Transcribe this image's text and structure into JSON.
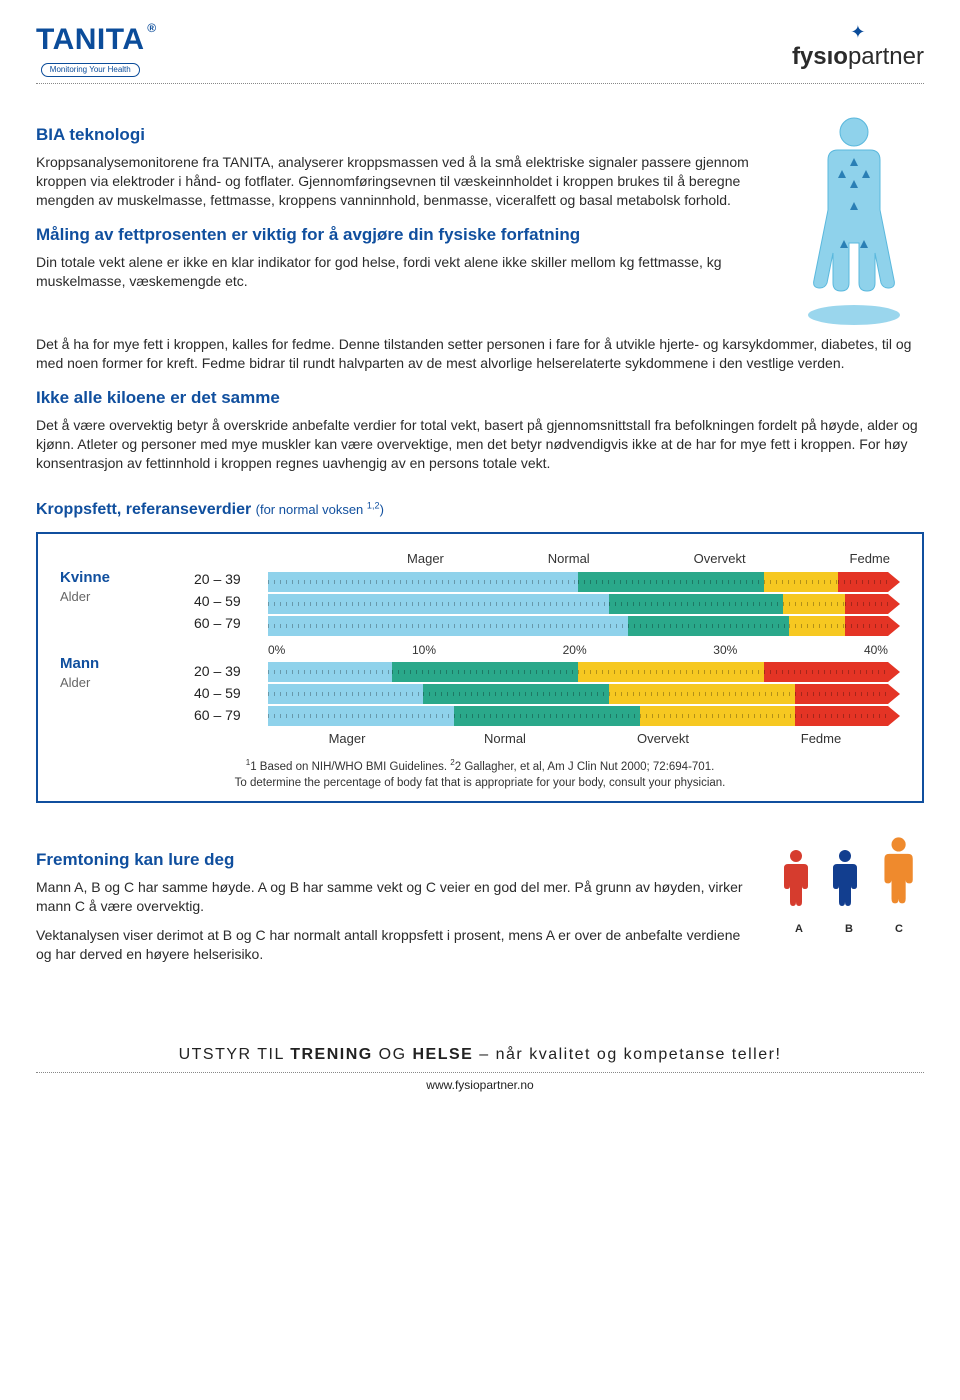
{
  "header": {
    "tanita_brand": "TANITA",
    "tanita_sub": "Monitoring Your Health",
    "fysio_name_1": "fysıo",
    "fysio_name_2": "partner"
  },
  "colors": {
    "brand_blue": "#104f9e",
    "seg_lightblue": "#8fd2eb",
    "seg_teal": "#2aa88a",
    "seg_yellow": "#f6c821",
    "seg_red": "#e43425",
    "man_red": "#d63c2e",
    "man_blue": "#123e8f",
    "man_orange": "#ef8a2d"
  },
  "sections": {
    "s1_title": "BIA teknologi",
    "s1_p1": "Kroppsanalysemonitorene fra TANITA, analyserer kroppsmassen ved å la små elektriske signaler passere gjennom kroppen via elektroder i hånd- og fotflater. Gjennomføringsevnen til væskeinnholdet i kroppen brukes til å beregne mengden av muskelmasse, fettmasse, kroppens vanninnhold, benmasse, viceralfett og basal metabolsk forhold.",
    "s2_title": "Måling av fettprosenten er viktig for å avgjøre din fysiske forfatning",
    "s2_p1": "Din totale vekt alene er ikke en klar indikator for god helse, fordi vekt alene ikke skiller mellom kg fettmasse, kg muskelmasse, væskemengde etc.",
    "s2_p2": "Det å ha for mye fett i kroppen, kalles for fedme. Denne tilstanden setter personen i fare for å utvikle hjerte- og karsykdommer, diabetes, til og med noen former for kreft. Fedme bidrar til rundt halvparten av de mest alvorlige helserelaterte sykdommene i den vestlige verden.",
    "s3_title": "Ikke alle kiloene er det samme",
    "s3_p1": "Det å være overvektig betyr å overskride anbefalte verdier for total vekt, basert på gjennomsnittstall fra befolkningen fordelt på høyde, alder og kjønn. Atleter og personer med mye muskler kan være overvektige, men det betyr nødvendigvis ikke at de har for mye fett i kroppen. For høy konsentrasjon av fettinnhold i kroppen regnes uavhengig av en persons totale vekt."
  },
  "chart": {
    "title": "Kroppsfett, referanseverdier",
    "title_sub": "(for normal voksen 1,2)",
    "categories_top": [
      "Mager",
      "Normal",
      "Overvekt",
      "Fedme"
    ],
    "categories_bottom": [
      "Mager",
      "Normal",
      "Overvekt",
      "Fedme"
    ],
    "axis_labels": [
      "0%",
      "10%",
      "20%",
      "30%",
      "40%"
    ],
    "groups": [
      {
        "gender": "Kvinne",
        "alder_label": "Alder",
        "rows": [
          {
            "age": "20 – 39",
            "segments": [
              {
                "pct": 50,
                "color": "#8fd2eb"
              },
              {
                "pct": 30,
                "color": "#2aa88a"
              },
              {
                "pct": 12,
                "color": "#f6c821"
              },
              {
                "pct": 8,
                "color": "#e43425"
              }
            ]
          },
          {
            "age": "40 – 59",
            "segments": [
              {
                "pct": 55,
                "color": "#8fd2eb"
              },
              {
                "pct": 28,
                "color": "#2aa88a"
              },
              {
                "pct": 10,
                "color": "#f6c821"
              },
              {
                "pct": 7,
                "color": "#e43425"
              }
            ]
          },
          {
            "age": "60 – 79",
            "segments": [
              {
                "pct": 58,
                "color": "#8fd2eb"
              },
              {
                "pct": 26,
                "color": "#2aa88a"
              },
              {
                "pct": 9,
                "color": "#f6c821"
              },
              {
                "pct": 7,
                "color": "#e43425"
              }
            ]
          }
        ]
      },
      {
        "gender": "Mann",
        "alder_label": "Alder",
        "rows": [
          {
            "age": "20 – 39",
            "segments": [
              {
                "pct": 20,
                "color": "#8fd2eb"
              },
              {
                "pct": 30,
                "color": "#2aa88a"
              },
              {
                "pct": 30,
                "color": "#f6c821"
              },
              {
                "pct": 20,
                "color": "#e43425"
              }
            ]
          },
          {
            "age": "40 – 59",
            "segments": [
              {
                "pct": 25,
                "color": "#8fd2eb"
              },
              {
                "pct": 30,
                "color": "#2aa88a"
              },
              {
                "pct": 30,
                "color": "#f6c821"
              },
              {
                "pct": 15,
                "color": "#e43425"
              }
            ]
          },
          {
            "age": "60 – 79",
            "segments": [
              {
                "pct": 30,
                "color": "#8fd2eb"
              },
              {
                "pct": 30,
                "color": "#2aa88a"
              },
              {
                "pct": 25,
                "color": "#f6c821"
              },
              {
                "pct": 15,
                "color": "#e43425"
              }
            ]
          }
        ]
      }
    ],
    "footnote1": "1 Based on NIH/WHO BMI Guidelines. ",
    "footnote2": "2 Gallagher, et al, Am J Clin Nut 2000; 72:694-701.",
    "footnote3": "To determine the percentage of body fat that is appropriate for your body, consult your physician."
  },
  "lower": {
    "title": "Fremtoning kan lure deg",
    "p1": "Mann A, B og C har samme høyde. A og B har samme vekt og C veier en god del mer. På grunn av høyden, virker mann C å være overvektig.",
    "p2": "Vektanalysen viser derimot at B og C har normalt antall kroppsfett i prosent, mens A er over de anbefalte verdiene og har derved en høyere helserisiko.",
    "men": [
      {
        "label": "A",
        "color": "#d63c2e",
        "scale": 1.0
      },
      {
        "label": "B",
        "color": "#123e8f",
        "scale": 1.0
      },
      {
        "label": "C",
        "color": "#ef8a2d",
        "scale": 1.18
      }
    ]
  },
  "footer": {
    "slogan_1": "UTSTYR TIL ",
    "slogan_2": "TRENING",
    "slogan_3": " OG ",
    "slogan_4": "HELSE",
    "slogan_5": " – når kvalitet og kompetanse teller!",
    "url": "www.fysiopartner.no"
  }
}
